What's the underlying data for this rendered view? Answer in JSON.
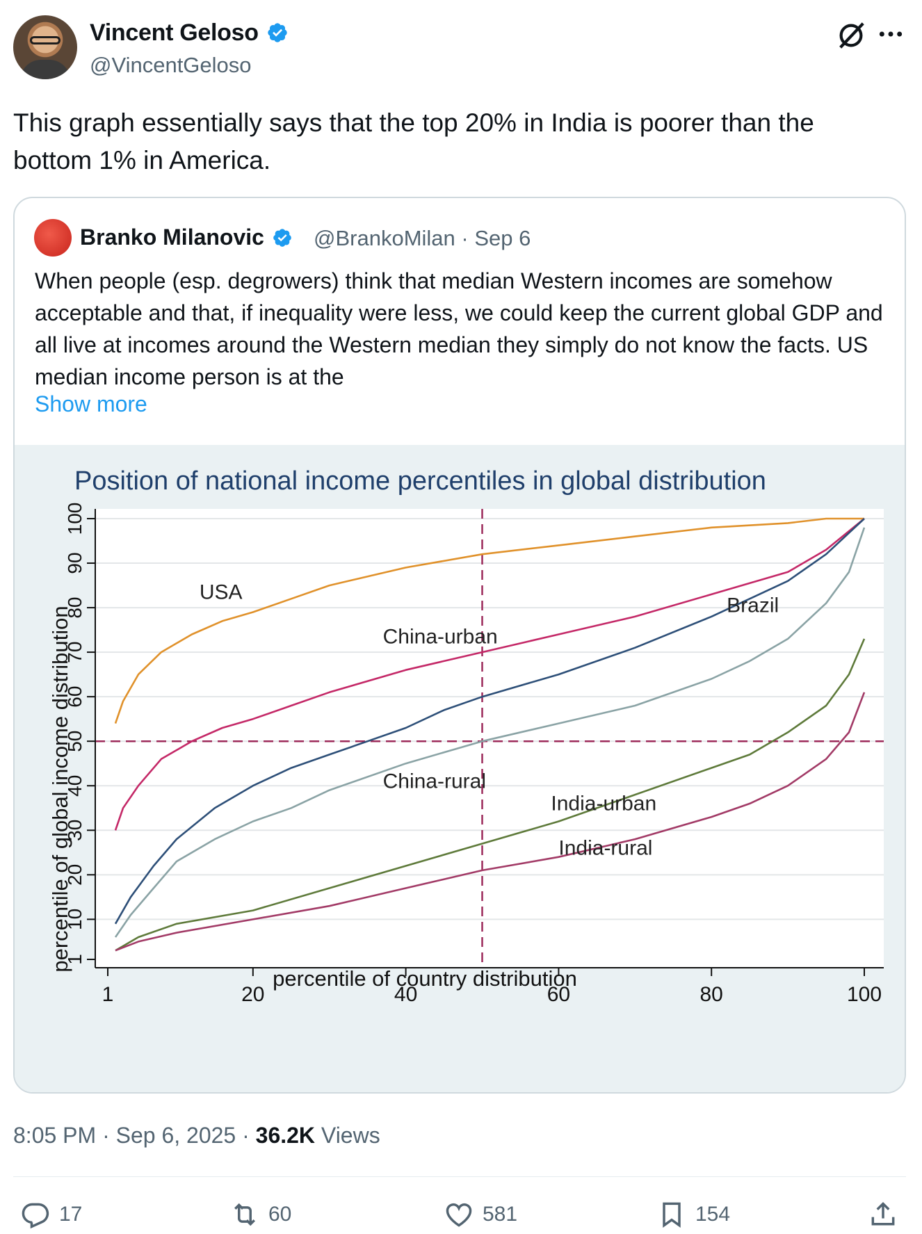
{
  "tweet": {
    "author_name": "Vincent Geloso",
    "author_handle": "@VincentGeloso",
    "text": "This graph essentially says that the top 20% in India is poorer than the bottom 1% in America.",
    "timestamp": "8:05 PM · Sep 6, 2025 · ",
    "views_count": "36.2K",
    "views_label": " Views",
    "actions": {
      "replies": "17",
      "reposts": "60",
      "likes": "581",
      "bookmarks": "154"
    }
  },
  "quoted": {
    "author_name": "Branko Milanovic",
    "author_handle": "@BrankoMilan · Sep 6",
    "text": "When people (esp. degrowers) think that median Western incomes are somehow acceptable and that, if inequality were less, we could keep the current global GDP and all live at incomes around the Western median they simply do not know the facts. US median income person is at the",
    "show_more": "Show more"
  },
  "colors": {
    "accent": "#1d9bf0",
    "verified": "#1d9bf0",
    "muted": "#536471"
  },
  "chart_data": {
    "type": "line",
    "title": "Position of national income percentiles in global distribution",
    "xlabel": "percentile of country distribution",
    "ylabel": "percentile of global income distribution",
    "xlim": [
      1,
      100
    ],
    "ylim": [
      1,
      100
    ],
    "xticks": [
      1,
      20,
      40,
      60,
      80,
      100
    ],
    "yticks": [
      1,
      10,
      20,
      30,
      40,
      50,
      60,
      70,
      80,
      90,
      100
    ],
    "reference_lines": {
      "x": 50,
      "y": 50
    },
    "series": [
      {
        "name": "USA",
        "color": "#e0912a",
        "x": [
          2,
          3,
          5,
          8,
          12,
          16,
          20,
          25,
          30,
          40,
          50,
          60,
          70,
          80,
          90,
          95,
          100
        ],
        "values": [
          54,
          59,
          65,
          70,
          74,
          77,
          79,
          82,
          85,
          89,
          92,
          94,
          96,
          98,
          99,
          100,
          100
        ]
      },
      {
        "name": "China-urban",
        "color": "#c42867",
        "x": [
          2,
          3,
          5,
          8,
          12,
          16,
          20,
          25,
          30,
          40,
          50,
          60,
          70,
          80,
          90,
          95,
          100
        ],
        "values": [
          30,
          35,
          40,
          46,
          50,
          53,
          55,
          58,
          61,
          66,
          70,
          74,
          78,
          83,
          88,
          93,
          100
        ]
      },
      {
        "name": "Brazil",
        "color": "#2d4f78",
        "x": [
          2,
          4,
          7,
          10,
          15,
          20,
          25,
          30,
          35,
          40,
          45,
          50,
          60,
          70,
          80,
          90,
          95,
          100
        ],
        "values": [
          9,
          15,
          22,
          28,
          35,
          40,
          44,
          47,
          50,
          53,
          57,
          60,
          65,
          71,
          78,
          86,
          92,
          100
        ]
      },
      {
        "name": "China-rural",
        "color": "#8aa3a5",
        "x": [
          2,
          4,
          7,
          10,
          15,
          20,
          25,
          30,
          40,
          50,
          60,
          70,
          80,
          85,
          90,
          95,
          98,
          100
        ],
        "values": [
          6,
          11,
          17,
          23,
          28,
          32,
          35,
          39,
          45,
          50,
          54,
          58,
          64,
          68,
          73,
          81,
          88,
          98
        ]
      },
      {
        "name": "India-urban",
        "color": "#5e7a3a",
        "x": [
          2,
          5,
          10,
          20,
          30,
          40,
          50,
          60,
          70,
          80,
          85,
          90,
          95,
          98,
          100
        ],
        "values": [
          3,
          6,
          9,
          12,
          17,
          22,
          27,
          32,
          38,
          44,
          47,
          52,
          58,
          65,
          73
        ]
      },
      {
        "name": "India-rural",
        "color": "#a23a66",
        "x": [
          2,
          5,
          10,
          20,
          30,
          40,
          50,
          60,
          70,
          80,
          85,
          90,
          95,
          98,
          100
        ],
        "values": [
          3,
          5,
          7,
          10,
          13,
          17,
          21,
          24,
          28,
          33,
          36,
          40,
          46,
          52,
          61
        ]
      }
    ]
  }
}
